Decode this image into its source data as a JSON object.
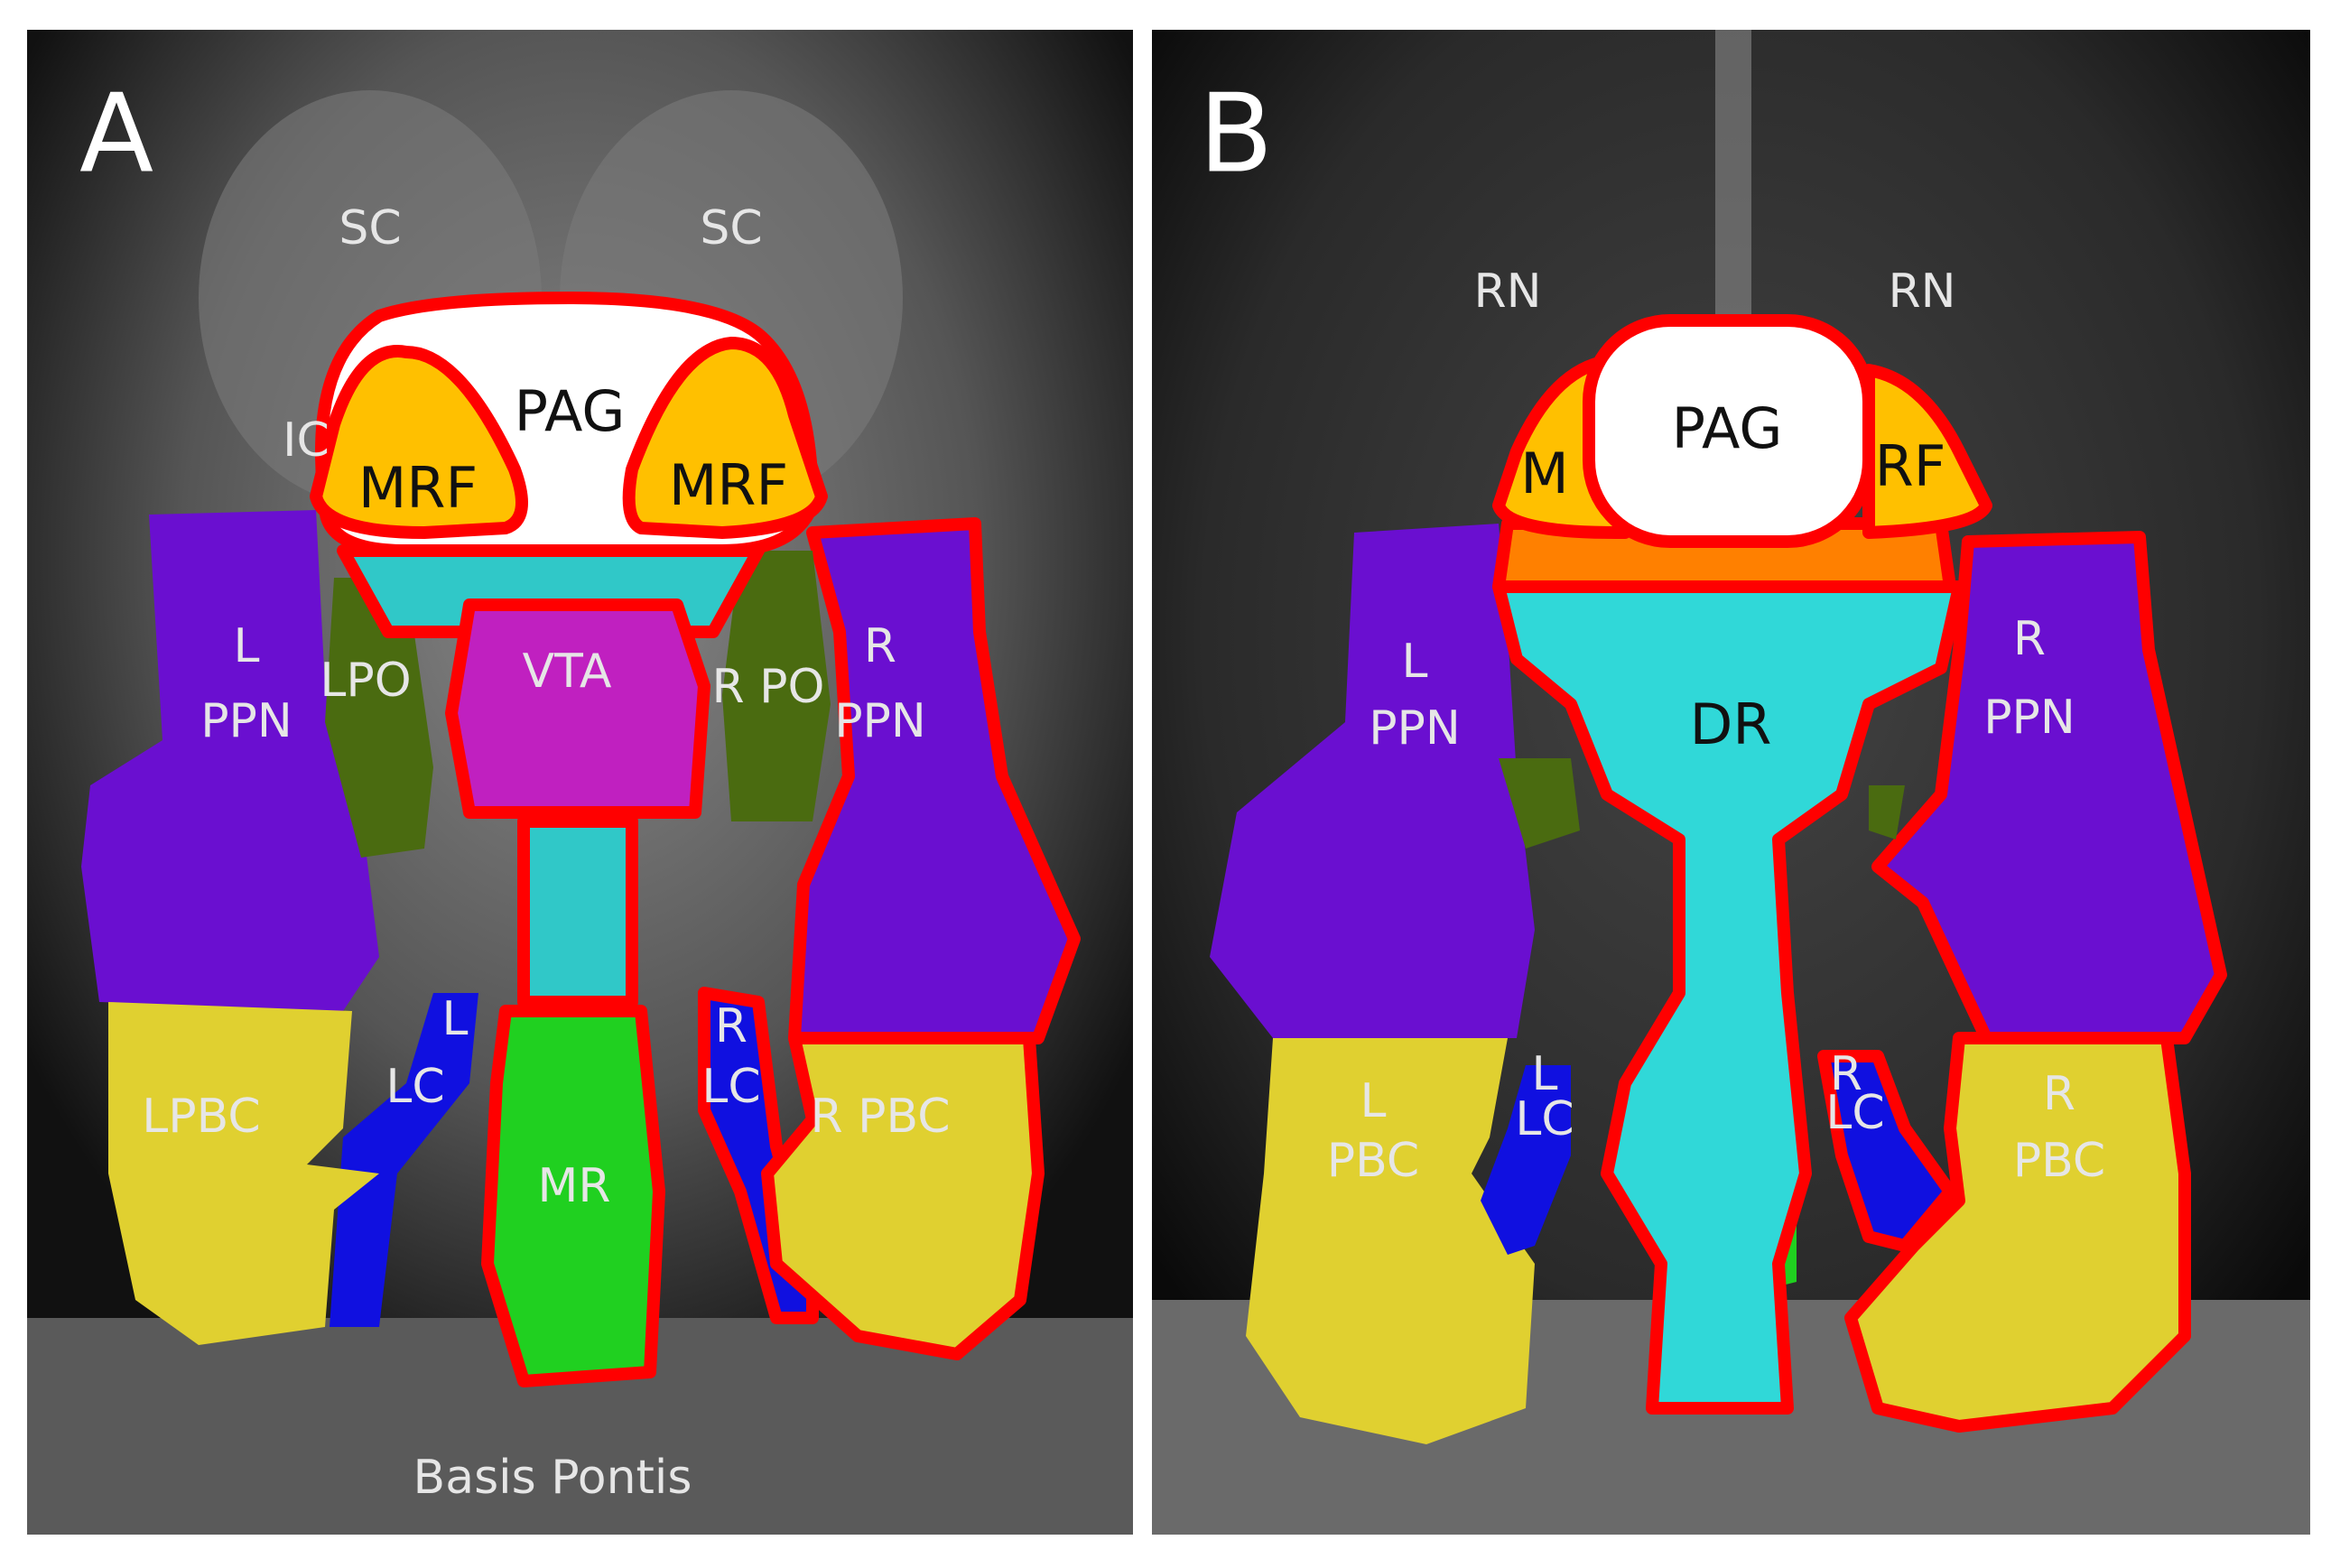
{
  "colors": {
    "outline": "#ff0000",
    "PAG": "#ffffff",
    "MRF": "#ffc000",
    "PPN": "#6a0fd0",
    "PO": "#4a6b10",
    "VTA": "#c020c0",
    "DR": "#30d8d8",
    "MR": "#20d020",
    "LC": "#1010e0",
    "PBC": "#e0d030"
  },
  "panel_a": {
    "letter": "A",
    "background_labels": {
      "sc_left": "SC",
      "sc_right": "SC",
      "ic": "IC",
      "basis_pontis": "Basis Pontis"
    },
    "regions": {
      "pag": "PAG",
      "mrf_left": "MRF",
      "mrf_right": "MRF",
      "l_ppn": [
        "L",
        "PPN"
      ],
      "lpo": "LPO",
      "vta": "VTA",
      "rpo": "R PO",
      "r_ppn": [
        "R",
        "PPN"
      ],
      "l_lc": [
        "L",
        "LC"
      ],
      "r_lc": [
        "R",
        "LC"
      ],
      "lpbc": "LPBC",
      "mr": "MR",
      "rpbc": "R PBC"
    }
  },
  "panel_b": {
    "letter": "B",
    "background_labels": {
      "rn_left": "RN",
      "rn_right": "RN"
    },
    "regions": {
      "pag": "PAG",
      "mrf_left_partial": "M",
      "mrf_right_partial": "RF",
      "l_ppn": [
        "L",
        "PPN"
      ],
      "dr": "DR",
      "r_ppn": [
        "R",
        "PPN"
      ],
      "l_lc": [
        "L",
        "LC"
      ],
      "r_lc": [
        "R",
        "LC"
      ],
      "l_pbc": [
        "L",
        "PBC"
      ],
      "r_pbc": [
        "R",
        "PBC"
      ]
    }
  }
}
